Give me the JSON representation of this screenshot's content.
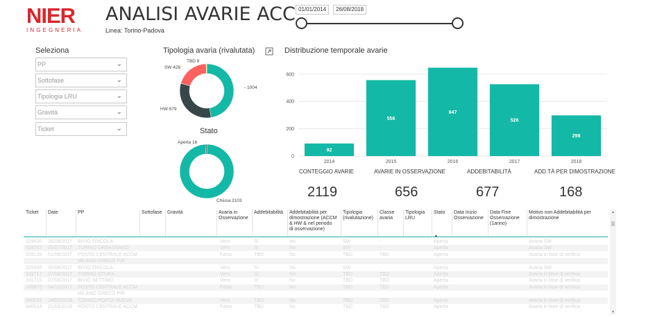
{
  "logo": {
    "main": "NIER",
    "sub": "INGEGNERIA"
  },
  "header": {
    "title": "ANALISI AVARIE ACC",
    "line_label": "Linea: ",
    "line_value": "Torino-Padova"
  },
  "date_range": {
    "start": "01/01/2014",
    "end": "26/08/2018"
  },
  "filters": {
    "title": "Seleziona",
    "items": [
      {
        "placeholder": "PP"
      },
      {
        "placeholder": "Sottofase"
      },
      {
        "placeholder": "Tipologia LRU"
      },
      {
        "placeholder": "Gravità"
      },
      {
        "placeholder": "Ticket"
      }
    ]
  },
  "tipologia_chart": {
    "title": "Tipologia avaria (rivalutata)",
    "labels": {
      "tbd": "TBD 8",
      "sw": "SW 426",
      "hw": "HW 679",
      "other": "- 1004"
    }
  },
  "stato_chart": {
    "title": "Stato",
    "labels": {
      "aperta": "Aperta 16",
      "chiusa": "Chiusa 2103"
    }
  },
  "chart_data": [
    {
      "type": "pie",
      "title": "Tipologia avaria (rivalutata)",
      "labels": [
        "-",
        "HW",
        "SW",
        "TBD"
      ],
      "values": [
        1004,
        679,
        426,
        8
      ],
      "colors": [
        "#14b8a6",
        "#374649",
        "#fd625e",
        "#f2c80f"
      ]
    },
    {
      "type": "pie",
      "title": "Stato",
      "labels": [
        "Chiusa",
        "Aperta"
      ],
      "values": [
        2103,
        16
      ],
      "colors": [
        "#14b8a6",
        "#374649"
      ]
    },
    {
      "type": "bar",
      "title": "Distribuzione temporale avarie",
      "categories": [
        "2014",
        "2015",
        "2016",
        "2017",
        "2018"
      ],
      "values": [
        92,
        556,
        647,
        526,
        298
      ],
      "ylim": [
        0,
        650
      ],
      "yticks": [
        "0",
        "200",
        "400",
        "600"
      ],
      "color": "#14b8a6",
      "grid": true
    }
  ],
  "kpis": [
    {
      "label": "CONTEGGIO AVARIE",
      "value": "2119"
    },
    {
      "label": "AVARIE IN OSSERVAZIONE",
      "value": "656"
    },
    {
      "label": "ADDEBITABILITÀ",
      "value": "677"
    },
    {
      "label": "ADD.TÀ PER DIMOSTRAZIONE",
      "value": "168"
    }
  ],
  "table": {
    "headers": [
      "Ticket",
      "Date",
      "PP",
      "Sottofase",
      "Gravità",
      "Avaria in Osservazione",
      "Addebitabilità",
      "Addebitabilità per dimostrazione (ACCM & HW & nel periodo di osservazione)",
      "Tipologia (rivalutazione)",
      "Classe avaria",
      "Tipologia LRU",
      "Stato",
      "Data Inizio Osservazione",
      "Data Fine Osservazione (1anno)",
      "Motivo non Addebitabilità per dimostrazione"
    ],
    "header_lines": [
      [
        "Ticket"
      ],
      [
        "Date"
      ],
      [
        "PP"
      ],
      [
        "Sottofase"
      ],
      [
        "Gravità"
      ],
      [
        "Avaria in",
        "Osservazione"
      ],
      [
        "Addebitabilità"
      ],
      [
        "Addebitabilità per",
        "dimostrazione (ACCM",
        "& HW & nel periodo",
        "di osservazione)"
      ],
      [
        "Tipologia",
        "(rivalutazione)"
      ],
      [
        "Classe",
        "avaria"
      ],
      [
        "Tipologia",
        "LRU"
      ],
      [
        "Stato"
      ],
      [
        "Data Inizio",
        "Osservazione"
      ],
      [
        "Data Fine",
        "Osservazione",
        "(1anno)"
      ],
      [
        "Motivo non Addebitabilità per",
        "dimostrazione"
      ]
    ],
    "rows": [
      [
        "329430",
        "26/09/2017",
        "BIVIO TRICOLA",
        "Vero",
        "Sì",
        "No",
        "SW",
        "-",
        "Aperta",
        "Avaria SW"
      ],
      [
        "329757",
        "05/07/2017",
        "TORINO ORBASSANO",
        "Vero",
        "Sì",
        "No",
        "SW",
        "-",
        "Aperta",
        "Avaria SW"
      ],
      [
        "329133",
        "01/08/2017",
        "POSTO CENTRALE ACCM",
        "Falso",
        "TBD",
        "No",
        "TBD",
        "TBD",
        "Aperta",
        "Avaria in fase di verifica"
      ],
      [
        "",
        "",
        "MILANO GRECO PIR",
        "",
        "",
        "",
        "",
        "",
        "",
        ""
      ],
      [
        "329306",
        "05/08/2017",
        "BIVIO TRICOLA",
        "Vero",
        "Sì",
        "No",
        "SW",
        "-",
        "Aperta",
        "Avaria SW"
      ],
      [
        "331717",
        "07/08/2017",
        "TORINO STURA",
        "Vero",
        "Sì",
        "No",
        "TBD",
        "TBD",
        "Aperta",
        "Avaria in fase di verifica"
      ],
      [
        "331715",
        "07/08/2017",
        "BIVIO SETTIMO",
        "Vero",
        "Sì",
        "No",
        "TBD",
        "TBD",
        "Aperta",
        "Avaria in fase di verifica"
      ],
      [
        "339679",
        "04/12/2017",
        "POSTO CENTRALE ACCM",
        "Falso",
        "TBD",
        "No",
        "TBD",
        "TBD",
        "Aperta",
        "Avaria in fase di verifica"
      ],
      [
        "",
        "",
        "MILANO GRECO PIR",
        "",
        "",
        "",
        "",
        "",
        "",
        ""
      ],
      [
        "340033",
        "14/02/2018",
        "TORINO PORTA NUOVA",
        "Vero",
        "TBD",
        "No",
        "TBD",
        "TBD",
        "Aperta",
        "Avaria in fase di verifica"
      ],
      [
        "340524",
        "21/03/2018",
        "POSTO CENTRALE ACCM",
        "Falso",
        "TBD",
        "No",
        "TBD",
        "TBD",
        "Aperta",
        "Avaria in fase di verifica"
      ]
    ]
  }
}
